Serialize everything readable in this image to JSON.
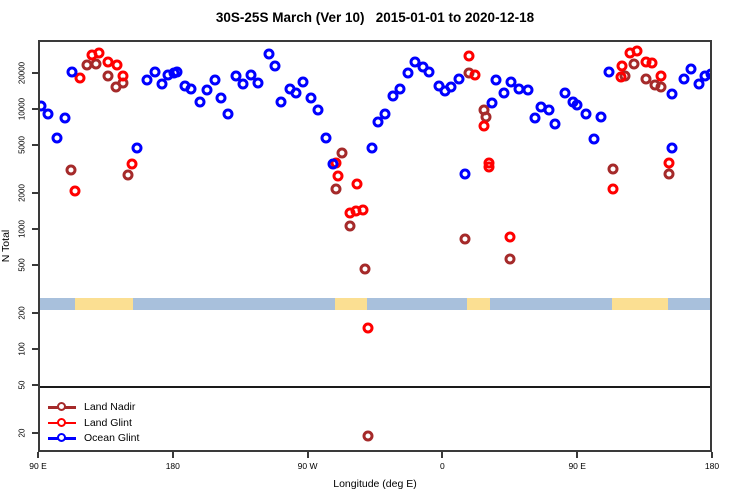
{
  "title": "30S-25S March (Ver 10)   2015-01-01 to 2020-12-18",
  "legend": {
    "items": [
      {
        "label": "Land Nadir",
        "color": "#A52A2A"
      },
      {
        "label": "Land Glint",
        "color": "#FF0000"
      },
      {
        "label": "Ocean Glint",
        "color": "#0000FF"
      }
    ]
  },
  "chart_data": {
    "type": "scatter",
    "title": "30S-25S March (Ver 10)   2015-01-01 to 2020-12-18",
    "xlabel": "Longitude (deg E)",
    "ylabel": "N Total",
    "x_axis": {
      "note": "longitude axis wraps eastward from 90E through 180, 90W, 0, 90E to 180; stored as continuous 90-540 deg",
      "range_deg": [
        90,
        540
      ],
      "ticks": [
        90,
        180,
        270,
        360,
        450,
        540
      ],
      "tick_labels": [
        "90 E",
        "180",
        "90 W",
        "0",
        "90 E",
        "180"
      ]
    },
    "y_axis": {
      "scale": "log",
      "ticks": [
        20,
        50,
        100,
        200,
        500,
        1000,
        2000,
        5000,
        10000,
        20000
      ],
      "range": [
        14,
        34000
      ]
    },
    "grid": false,
    "legend_position": "bottom-left",
    "land_ocean_strip": {
      "ocean_color": "#A8C0DC",
      "land_color": "#FBDF92",
      "value_band": [
        213,
        266
      ],
      "land_segments_deg": [
        [
          115,
          153.4
        ],
        [
          288.3,
          309.7
        ],
        [
          376.5,
          391.8
        ],
        [
          473.3,
          510.7
        ]
      ]
    },
    "series": [
      {
        "name": "Land Nadir",
        "color": "#A52A2A",
        "marker": "open-circle",
        "points": [
          [
            112,
            3100
          ],
          [
            123,
            23400
          ],
          [
            129,
            23700
          ],
          [
            137,
            18900
          ],
          [
            142,
            15400
          ],
          [
            147,
            16600
          ],
          [
            150,
            2840
          ],
          [
            289,
            2150
          ],
          [
            293,
            4350
          ],
          [
            298,
            1070
          ],
          [
            308,
            470
          ],
          [
            310,
            19
          ],
          [
            375,
            825
          ],
          [
            378,
            20000
          ],
          [
            388,
            9900
          ],
          [
            389,
            8700
          ],
          [
            405,
            570
          ],
          [
            474,
            3170
          ],
          [
            482,
            18900
          ],
          [
            488,
            23700
          ],
          [
            496,
            17900
          ],
          [
            502,
            16000
          ],
          [
            506,
            15400
          ],
          [
            511,
            2890
          ]
        ]
      },
      {
        "name": "Land Glint",
        "color": "#FF0000",
        "marker": "open-circle",
        "points": [
          [
            115,
            2100
          ],
          [
            118,
            18400
          ],
          [
            126,
            28300
          ],
          [
            131,
            29400
          ],
          [
            137,
            24900
          ],
          [
            143,
            23600
          ],
          [
            147,
            18800
          ],
          [
            153,
            3500
          ],
          [
            289,
            3590
          ],
          [
            290,
            2780
          ],
          [
            298,
            1360
          ],
          [
            302,
            1420
          ],
          [
            303,
            2390
          ],
          [
            307,
            1450
          ],
          [
            310,
            150
          ],
          [
            378,
            28000
          ],
          [
            382,
            19300
          ],
          [
            388,
            7300
          ],
          [
            391,
            3590
          ],
          [
            391,
            3310
          ],
          [
            405,
            870
          ],
          [
            474,
            2150
          ],
          [
            479,
            18600
          ],
          [
            480,
            23000
          ],
          [
            485,
            29500
          ],
          [
            490,
            30500
          ],
          [
            496,
            25000
          ],
          [
            500,
            24400
          ],
          [
            506,
            18900
          ],
          [
            511,
            3590
          ]
        ]
      },
      {
        "name": "Ocean Glint",
        "color": "#0000FF",
        "marker": "open-circle",
        "points": [
          [
            92,
            10600
          ],
          [
            97,
            9100
          ],
          [
            103,
            5800
          ],
          [
            108,
            8500
          ],
          [
            113,
            20300
          ],
          [
            156,
            4750
          ],
          [
            163,
            17600
          ],
          [
            168,
            20600
          ],
          [
            173,
            16200
          ],
          [
            177,
            19400
          ],
          [
            181,
            20000
          ],
          [
            183,
            20600
          ],
          [
            188,
            15500
          ],
          [
            192,
            14800
          ],
          [
            198,
            11400
          ],
          [
            203,
            14500
          ],
          [
            208,
            17600
          ],
          [
            212,
            12400
          ],
          [
            217,
            9150
          ],
          [
            222,
            18900
          ],
          [
            227,
            16400
          ],
          [
            232,
            19400
          ],
          [
            237,
            16700
          ],
          [
            244,
            29000
          ],
          [
            248,
            23000
          ],
          [
            252,
            11400
          ],
          [
            258,
            14800
          ],
          [
            262,
            13800
          ],
          [
            267,
            17000
          ],
          [
            272,
            12400
          ],
          [
            277,
            9800
          ],
          [
            282,
            5750
          ],
          [
            287,
            3500
          ],
          [
            313,
            4750
          ],
          [
            317,
            7800
          ],
          [
            322,
            9150
          ],
          [
            327,
            12800
          ],
          [
            332,
            14900
          ],
          [
            337,
            20000
          ],
          [
            342,
            24600
          ],
          [
            347,
            22400
          ],
          [
            351,
            20300
          ],
          [
            358,
            15500
          ],
          [
            362,
            14300
          ],
          [
            366,
            15200
          ],
          [
            371,
            17900
          ],
          [
            375,
            2900
          ],
          [
            393,
            11300
          ],
          [
            396,
            17500
          ],
          [
            401,
            13800
          ],
          [
            406,
            17000
          ],
          [
            411,
            14800
          ],
          [
            417,
            14500
          ],
          [
            422,
            8450
          ],
          [
            426,
            10500
          ],
          [
            431,
            9800
          ],
          [
            435,
            7550
          ],
          [
            442,
            13800
          ],
          [
            447,
            11600
          ],
          [
            450,
            10900
          ],
          [
            456,
            9150
          ],
          [
            461,
            5620
          ],
          [
            466,
            8550
          ],
          [
            471,
            20300
          ],
          [
            513,
            13400
          ],
          [
            513,
            4800
          ],
          [
            521,
            18000
          ],
          [
            526,
            21700
          ],
          [
            531,
            16300
          ],
          [
            535,
            18900
          ],
          [
            539,
            19500
          ]
        ]
      }
    ]
  }
}
